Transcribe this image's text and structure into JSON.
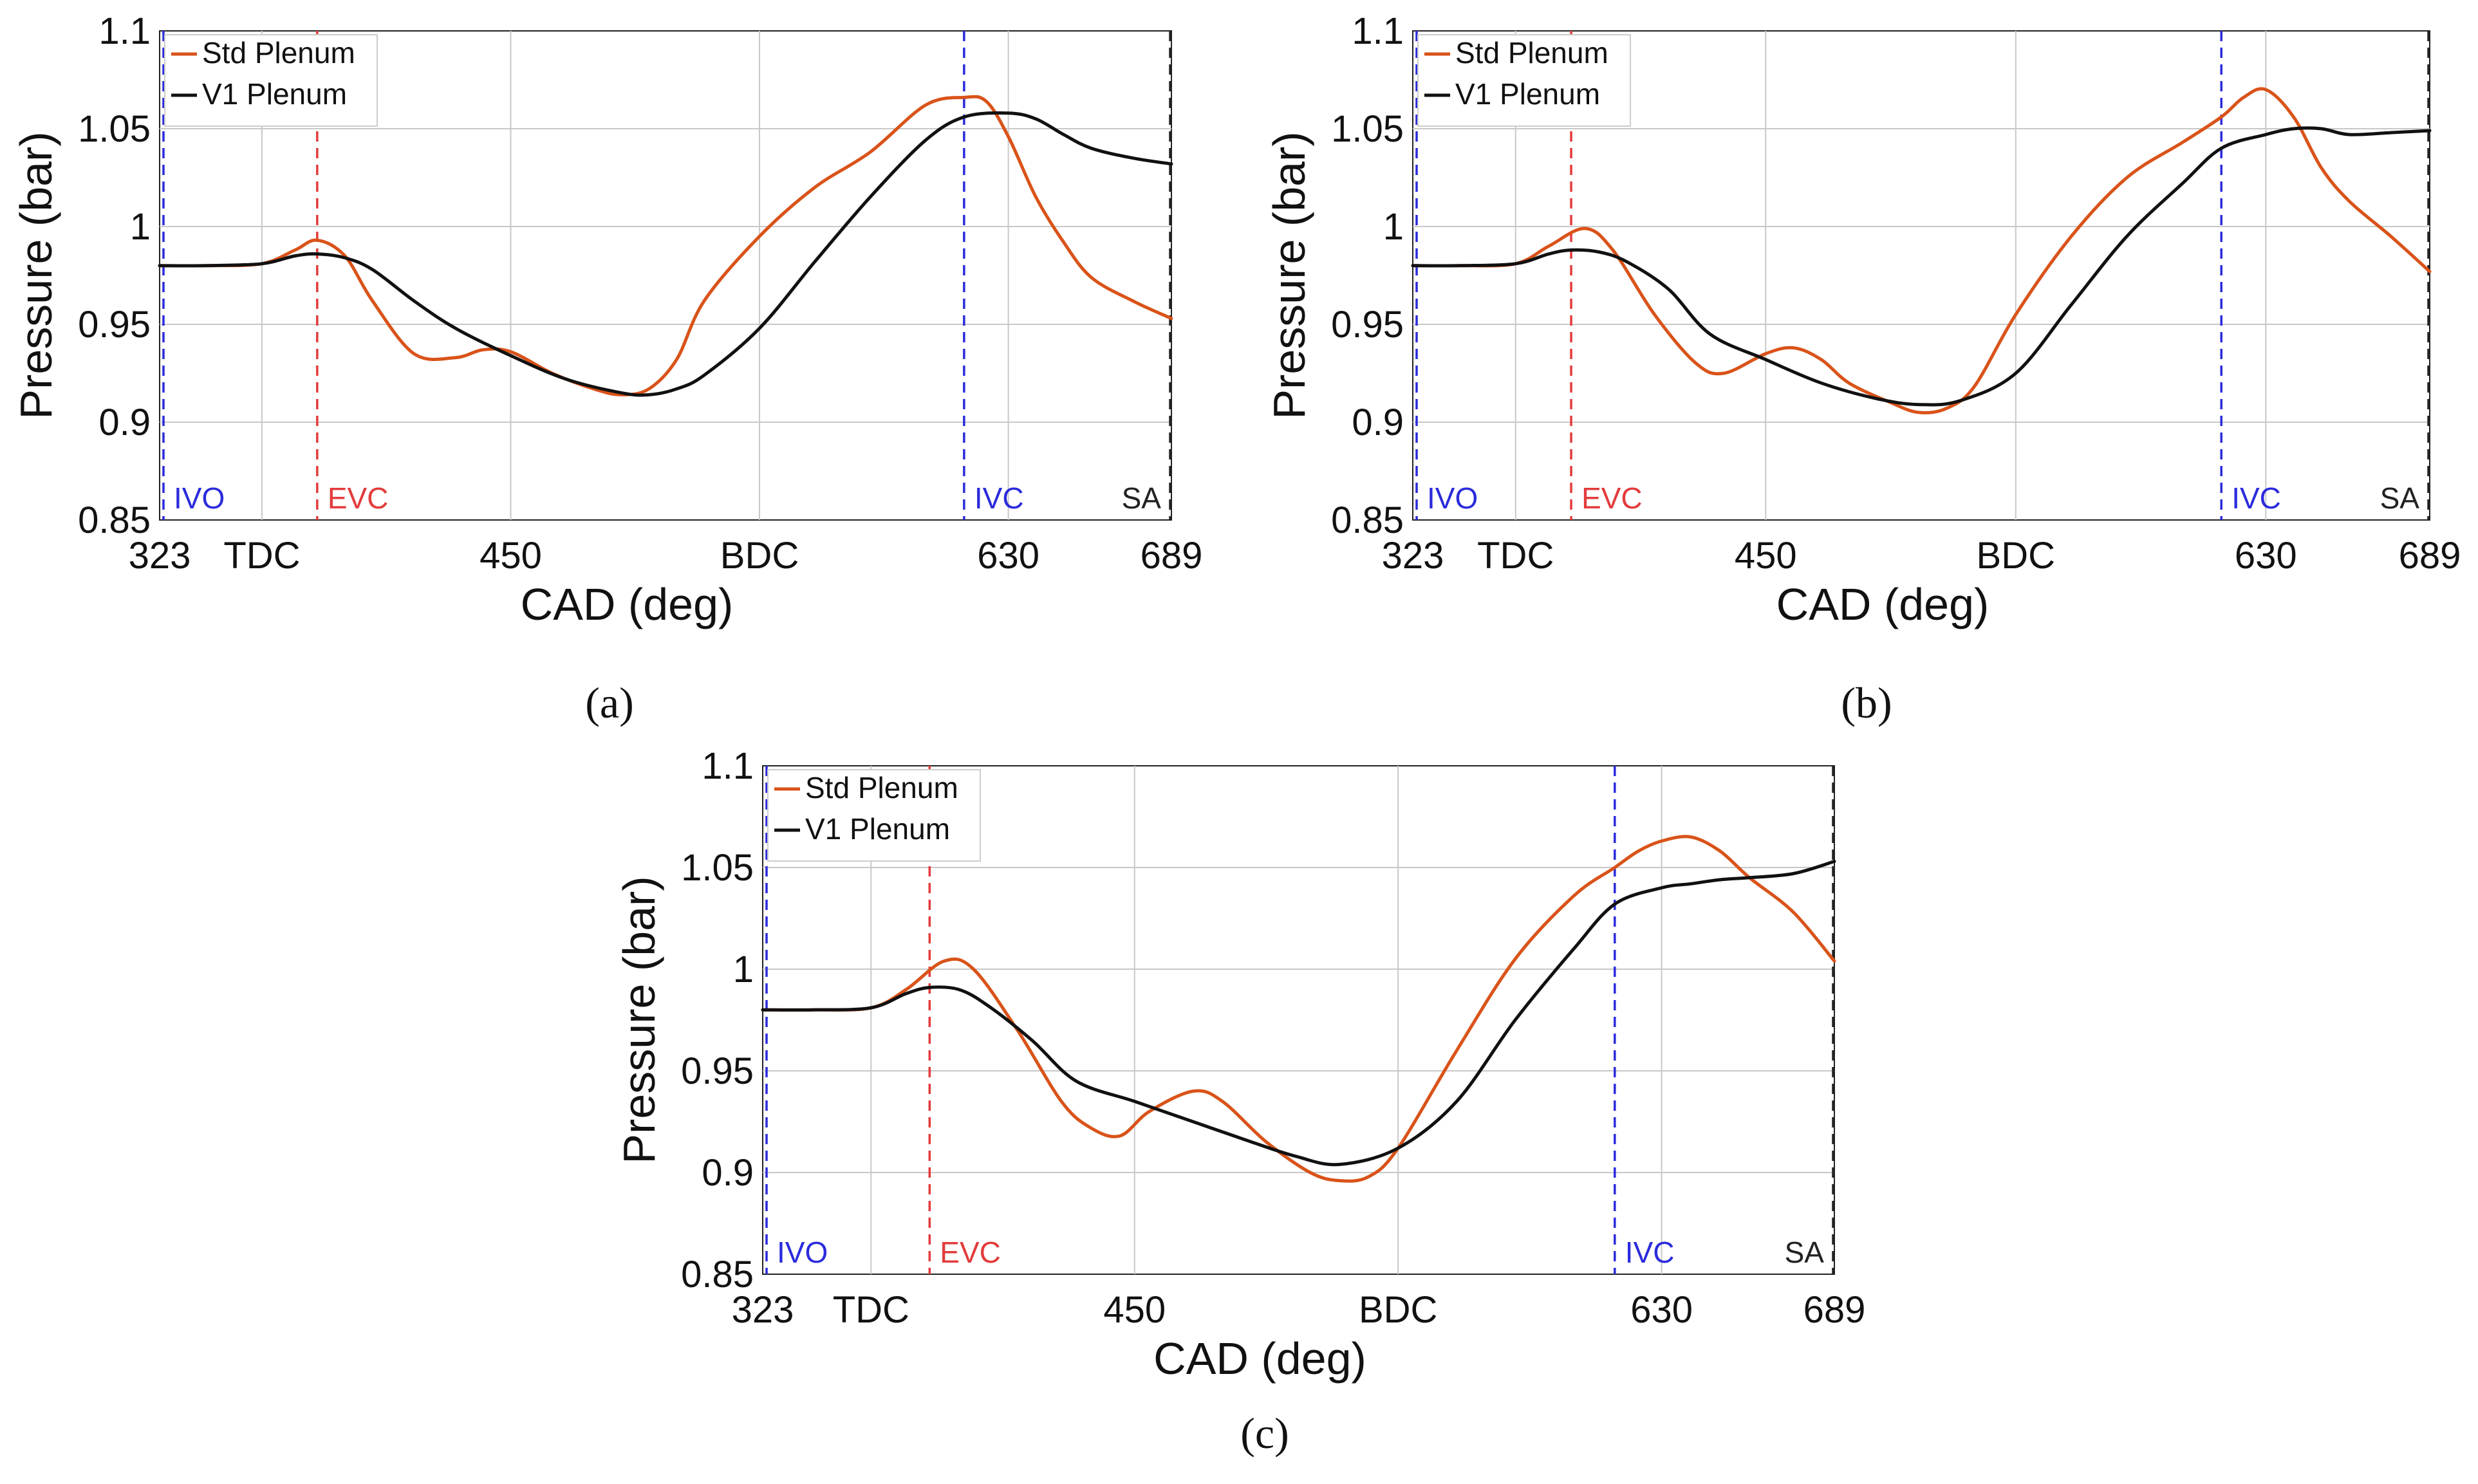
{
  "chart_data": [
    {
      "type": "line",
      "panel_label": "(a)",
      "xlabel": "CAD (deg)",
      "ylabel": "Pressure (bar)",
      "xlim": [
        323,
        689
      ],
      "ylim": [
        0.85,
        1.1
      ],
      "x_ticks": [
        {
          "value": 323,
          "label": "323"
        },
        {
          "value": 360,
          "label": "TDC"
        },
        {
          "value": 450,
          "label": "450"
        },
        {
          "value": 540,
          "label": "BDC"
        },
        {
          "value": 630,
          "label": "630"
        },
        {
          "value": 689,
          "label": "689"
        }
      ],
      "y_ticks": [
        "0.85",
        "0.9",
        "0.95",
        "1",
        "1.05",
        "1.1"
      ],
      "grid": true,
      "legend_position": "top-left",
      "markers": [
        {
          "label": "IVO",
          "x": 323,
          "color": "#2b2bdc"
        },
        {
          "label": "EVC",
          "x": 380,
          "color": "#e33b3b"
        },
        {
          "label": "IVC",
          "x": 614,
          "color": "#2b2bdc"
        },
        {
          "label": "SA",
          "x": 689,
          "color": "#222222"
        }
      ],
      "series": [
        {
          "name": "Std Plenum",
          "color": "#d95319",
          "x": [
            323,
            340,
            360,
            372,
            380,
            390,
            400,
            415,
            430,
            440,
            450,
            465,
            480,
            490,
            500,
            510,
            520,
            540,
            560,
            580,
            600,
            614,
            622,
            630,
            640,
            650,
            660,
            675,
            689
          ],
          "y": [
            0.98,
            0.98,
            0.981,
            0.988,
            0.993,
            0.985,
            0.962,
            0.935,
            0.933,
            0.937,
            0.936,
            0.925,
            0.917,
            0.914,
            0.917,
            0.932,
            0.962,
            0.995,
            1.02,
            1.038,
            1.062,
            1.066,
            1.064,
            1.046,
            1.015,
            0.992,
            0.974,
            0.962,
            0.953
          ]
        },
        {
          "name": "V1 Plenum",
          "color": "#111111",
          "x": [
            323,
            340,
            360,
            372,
            380,
            390,
            400,
            415,
            430,
            450,
            470,
            490,
            500,
            510,
            520,
            540,
            560,
            580,
            600,
            614,
            630,
            640,
            650,
            660,
            675,
            689
          ],
          "y": [
            0.98,
            0.98,
            0.981,
            0.985,
            0.986,
            0.984,
            0.978,
            0.962,
            0.948,
            0.934,
            0.922,
            0.915,
            0.914,
            0.917,
            0.924,
            0.948,
            0.982,
            1.015,
            1.044,
            1.056,
            1.058,
            1.055,
            1.047,
            1.04,
            1.035,
            1.032
          ]
        }
      ]
    },
    {
      "type": "line",
      "panel_label": "(b)",
      "xlabel": "CAD (deg)",
      "ylabel": "Pressure (bar)",
      "xlim": [
        323,
        689
      ],
      "ylim": [
        0.85,
        1.1
      ],
      "x_ticks": [
        {
          "value": 323,
          "label": "323"
        },
        {
          "value": 360,
          "label": "TDC"
        },
        {
          "value": 450,
          "label": "450"
        },
        {
          "value": 540,
          "label": "BDC"
        },
        {
          "value": 630,
          "label": "630"
        },
        {
          "value": 689,
          "label": "689"
        }
      ],
      "y_ticks": [
        "0.85",
        "0.9",
        "0.95",
        "1",
        "1.05",
        "1.1"
      ],
      "grid": true,
      "legend_position": "top-left",
      "markers": [
        {
          "label": "IVO",
          "x": 323,
          "color": "#2b2bdc"
        },
        {
          "label": "EVC",
          "x": 380,
          "color": "#e33b3b"
        },
        {
          "label": "IVC",
          "x": 614,
          "color": "#2b2bdc"
        },
        {
          "label": "SA",
          "x": 689,
          "color": "#222222"
        }
      ],
      "series": [
        {
          "name": "Std Plenum",
          "color": "#d95319",
          "x": [
            323,
            340,
            360,
            372,
            385,
            395,
            410,
            425,
            435,
            450,
            460,
            470,
            480,
            495,
            505,
            515,
            525,
            540,
            560,
            580,
            600,
            614,
            622,
            630,
            640,
            650,
            660,
            675,
            689
          ],
          "y": [
            0.98,
            0.98,
            0.981,
            0.99,
            0.999,
            0.988,
            0.955,
            0.93,
            0.925,
            0.935,
            0.938,
            0.932,
            0.92,
            0.91,
            0.905,
            0.907,
            0.918,
            0.955,
            0.995,
            1.025,
            1.043,
            1.056,
            1.066,
            1.07,
            1.056,
            1.03,
            1.013,
            0.995,
            0.977
          ]
        },
        {
          "name": "V1 Plenum",
          "color": "#111111",
          "x": [
            323,
            340,
            360,
            372,
            380,
            390,
            400,
            415,
            430,
            450,
            470,
            490,
            505,
            520,
            540,
            560,
            580,
            600,
            614,
            630,
            640,
            650,
            660,
            675,
            689
          ],
          "y": [
            0.98,
            0.98,
            0.981,
            0.986,
            0.988,
            0.987,
            0.982,
            0.968,
            0.945,
            0.932,
            0.92,
            0.912,
            0.909,
            0.911,
            0.925,
            0.96,
            0.995,
            1.022,
            1.04,
            1.047,
            1.05,
            1.05,
            1.047,
            1.048,
            1.049
          ]
        }
      ]
    },
    {
      "type": "line",
      "panel_label": "(c)",
      "xlabel": "CAD (deg)",
      "ylabel": "Pressure (bar)",
      "xlim": [
        323,
        689
      ],
      "ylim": [
        0.85,
        1.1
      ],
      "x_ticks": [
        {
          "value": 323,
          "label": "323"
        },
        {
          "value": 360,
          "label": "TDC"
        },
        {
          "value": 450,
          "label": "450"
        },
        {
          "value": 540,
          "label": "BDC"
        },
        {
          "value": 630,
          "label": "630"
        },
        {
          "value": 689,
          "label": "689"
        }
      ],
      "y_ticks": [
        "0.85",
        "0.9",
        "0.95",
        "1",
        "1.05",
        "1.1"
      ],
      "grid": true,
      "legend_position": "top-left",
      "markers": [
        {
          "label": "IVO",
          "x": 323,
          "color": "#2b2bdc"
        },
        {
          "label": "EVC",
          "x": 380,
          "color": "#e33b3b"
        },
        {
          "label": "IVC",
          "x": 614,
          "color": "#2b2bdc"
        },
        {
          "label": "SA",
          "x": 689,
          "color": "#222222"
        }
      ],
      "series": [
        {
          "name": "Std Plenum",
          "color": "#d95319",
          "x": [
            323,
            340,
            360,
            372,
            385,
            395,
            410,
            425,
            435,
            445,
            455,
            470,
            480,
            495,
            510,
            520,
            530,
            540,
            560,
            580,
            600,
            614,
            622,
            630,
            640,
            650,
            660,
            675,
            689
          ],
          "y": [
            0.98,
            0.98,
            0.981,
            0.99,
            1.004,
            1.0,
            0.97,
            0.935,
            0.922,
            0.918,
            0.93,
            0.94,
            0.935,
            0.915,
            0.9,
            0.896,
            0.898,
            0.912,
            0.96,
            1.005,
            1.036,
            1.05,
            1.058,
            1.063,
            1.065,
            1.058,
            1.045,
            1.028,
            1.004
          ]
        },
        {
          "name": "V1 Plenum",
          "color": "#111111",
          "x": [
            323,
            340,
            360,
            372,
            380,
            390,
            400,
            415,
            430,
            450,
            470,
            490,
            505,
            520,
            540,
            560,
            580,
            600,
            614,
            630,
            640,
            650,
            660,
            675,
            689
          ],
          "y": [
            0.98,
            0.98,
            0.981,
            0.988,
            0.991,
            0.99,
            0.982,
            0.965,
            0.945,
            0.935,
            0.925,
            0.915,
            0.908,
            0.904,
            0.912,
            0.935,
            0.975,
            1.01,
            1.032,
            1.04,
            1.042,
            1.044,
            1.045,
            1.047,
            1.053
          ]
        }
      ]
    }
  ]
}
